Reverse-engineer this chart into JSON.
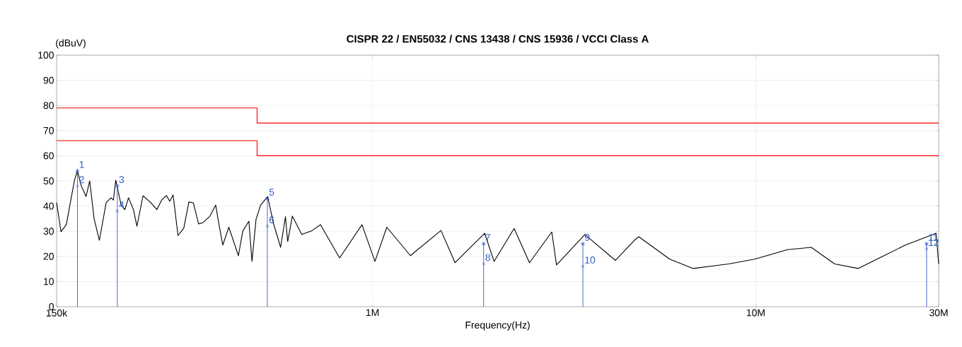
{
  "chart_data": {
    "type": "line",
    "title": "CISPR 22 / EN55032 / CNS 13438 / CNS 15936 / VCCI Class A",
    "xlabel": "Frequency(Hz)",
    "ylabel": "(dBuV)",
    "log": "x",
    "grid": true,
    "xlim": [
      150000,
      30000000
    ],
    "ylim": [
      0,
      100
    ],
    "xticks": [
      {
        "value": 150000,
        "label": "150k"
      },
      {
        "value": 1000000,
        "label": "1M"
      },
      {
        "value": 10000000,
        "label": "10M"
      },
      {
        "value": 30000000,
        "label": "30M"
      }
    ],
    "yticks": [
      0,
      10,
      20,
      30,
      40,
      50,
      60,
      70,
      80,
      90,
      100
    ],
    "series": [
      {
        "type": "line",
        "color": "#ff0000",
        "x": [
          150000,
          500000,
          500000,
          30000000
        ],
        "values": [
          79,
          79,
          73,
          73
        ]
      },
      {
        "type": "line",
        "color": "#ff0000",
        "x": [
          150000,
          500000,
          500000,
          30000000
        ],
        "values": [
          66,
          66,
          60,
          60
        ]
      },
      {
        "type": "line",
        "color": "#000000",
        "x": [
          150000,
          154000,
          159000,
          167000,
          170000,
          174000,
          179000,
          183000,
          188000,
          194000,
          202000,
          208000,
          211000,
          214000,
          221000,
          226000,
          231000,
          238000,
          243000,
          252000,
          264000,
          274000,
          282000,
          290000,
          296000,
          302000,
          311000,
          322000,
          332000,
          341000,
          352000,
          361000,
          377000,
          390000,
          396000,
          407000,
          422000,
          447000,
          459000,
          476000,
          485000,
          497000,
          511000,
          533000,
          552000,
          576000,
          593000,
          601000,
          618000,
          654000,
          693000,
          732000,
          821000,
          939000,
          1015000,
          1090000,
          1256000,
          1509000,
          1643000,
          1962000,
          2076000,
          2342000,
          2568000,
          2937000,
          3021000,
          3582000,
          4305000,
          4822000,
          4953000,
          5965000,
          6870000,
          8493000,
          9927000,
          12100000,
          13950000,
          16070000,
          18490000,
          21330000,
          24570000,
          29550000,
          30000000
        ],
        "values": [
          41.4,
          29.8,
          32.6,
          50.3,
          54,
          48,
          43.8,
          50,
          34.8,
          26.4,
          41.4,
          43.3,
          42.4,
          50.3,
          40.4,
          38.6,
          43.3,
          38.6,
          32,
          44.1,
          41.4,
          38.6,
          42.4,
          44.2,
          41.9,
          44.4,
          28.3,
          31.2,
          41.6,
          41.3,
          32.9,
          33.4,
          36,
          40.4,
          34.4,
          24.5,
          31.6,
          20.3,
          30.1,
          34,
          18,
          34.8,
          40.4,
          43.8,
          33,
          23.6,
          35.8,
          25.9,
          36,
          28.7,
          30.1,
          32.6,
          19.4,
          32.6,
          18,
          31.6,
          20.3,
          30.3,
          17.5,
          29.2,
          18,
          31.1,
          17.5,
          29.7,
          16.6,
          28.7,
          18.4,
          26.4,
          27.8,
          18.9,
          15.2,
          17,
          18.9,
          22.7,
          23.6,
          17,
          15.2,
          19.9,
          24.5,
          29.2,
          17
        ]
      },
      {
        "type": "lollipop",
        "color": "#2e5cc8",
        "marker": "cross",
        "x": [
          170000,
          216000,
          532000,
          1950000,
          3540000,
          27900000
        ],
        "values": [
          54,
          48,
          43,
          25,
          25,
          25
        ]
      },
      {
        "type": "scatter",
        "color": "#2e5cc8",
        "marker": "cross",
        "x": [
          170000,
          216000,
          532000,
          1950000,
          3540000,
          27900000
        ],
        "values": [
          48,
          38,
          32,
          17,
          16,
          23
        ]
      }
    ],
    "annotations": [
      {
        "text": "1",
        "x": 170000,
        "y": 54
      },
      {
        "text": "2",
        "x": 170000,
        "y": 48
      },
      {
        "text": "3",
        "x": 216000,
        "y": 48
      },
      {
        "text": "4",
        "x": 216000,
        "y": 38
      },
      {
        "text": "5",
        "x": 532000,
        "y": 43
      },
      {
        "text": "6",
        "x": 532000,
        "y": 32
      },
      {
        "text": "7",
        "x": 1950000,
        "y": 25
      },
      {
        "text": "8",
        "x": 1950000,
        "y": 17
      },
      {
        "text": "9",
        "x": 3540000,
        "y": 25
      },
      {
        "text": "10",
        "x": 3540000,
        "y": 16
      },
      {
        "text": "11",
        "x": 27900000,
        "y": 25
      },
      {
        "text": "12",
        "x": 27900000,
        "y": 23
      }
    ]
  }
}
